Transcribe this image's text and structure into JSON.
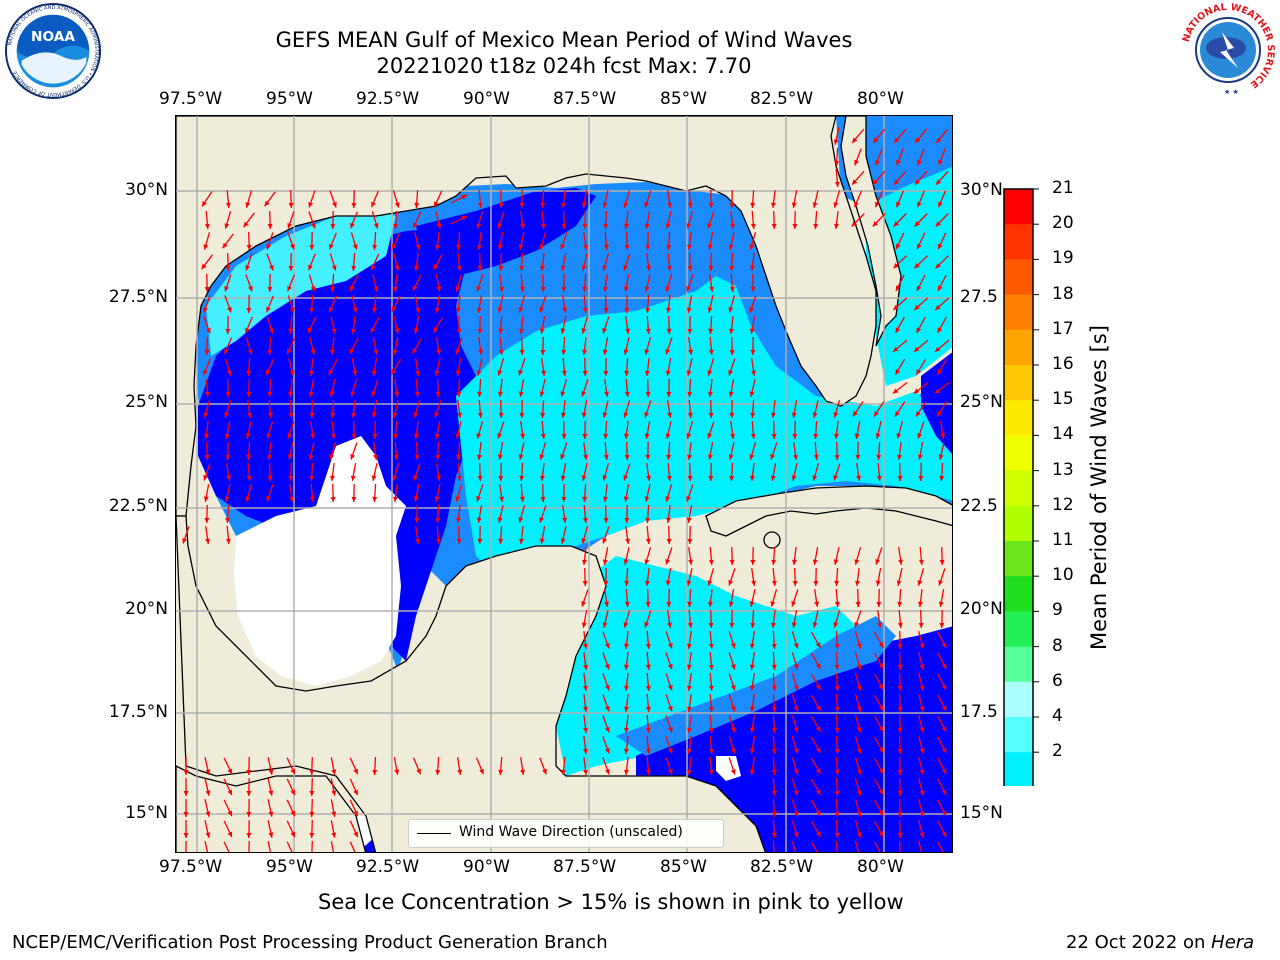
{
  "header": {
    "title_line1": "GEFS MEAN Gulf of Mexico Mean Period of Wind Waves",
    "title_line2": "20221020 t18z 024h fcst   Max: 7.70"
  },
  "logos": {
    "left": "noaa-logo",
    "right": "nws-logo",
    "noaa_text": "NOAA",
    "noaa_ring": "NATIONAL OCEANIC AND ATMOSPHERIC ADMINISTRATION • U.S. DEPARTMENT OF COMMERCE",
    "nws_ring": "NATIONAL WEATHER SERVICE"
  },
  "axes": {
    "lon_labels": [
      "97.5°W",
      "95°W",
      "92.5°W",
      "90°W",
      "87.5°W",
      "85°W",
      "82.5°W",
      "80°W"
    ],
    "lat_labels": [
      "30°N",
      "27.5°N",
      "25°N",
      "22.5°N",
      "20°N",
      "17.5°N",
      "15°N"
    ],
    "lat_labels_right": [
      "30°N",
      "27.5",
      "25°N",
      "22.5",
      "20°N",
      "17.5",
      "15°N"
    ]
  },
  "map": {
    "legend_label": "Wind Wave Direction (unscaled)",
    "land_color": "#efedda",
    "arrow_color": "#ff0000"
  },
  "colorbar": {
    "label": "Mean Period of Wind Waves [s]",
    "ticks": [
      "21",
      "20",
      "19",
      "18",
      "17",
      "16",
      "15",
      "14",
      "13",
      "12",
      "11",
      "10",
      "9",
      "8",
      "6",
      "4",
      "2"
    ],
    "colors": [
      "#ff0000",
      "#ff3300",
      "#ff5a00",
      "#ff7f00",
      "#ffa500",
      "#ffc800",
      "#ffea00",
      "#eeff00",
      "#d0ff00",
      "#b0ff00",
      "#6be61a",
      "#1fdd1f",
      "#22ee55",
      "#55ff99",
      "#aaffff",
      "#55ffff",
      "#00f0ff",
      "#1a8cff",
      "#0000ff"
    ]
  },
  "footer": {
    "note": "Sea Ice Concentration > 15% is shown in pink to yellow",
    "branch": "NCEP/EMC/Verification Post Processing Product Generation Branch",
    "date_prefix": "22 Oct 2022 on ",
    "date_host": "Hera"
  }
}
